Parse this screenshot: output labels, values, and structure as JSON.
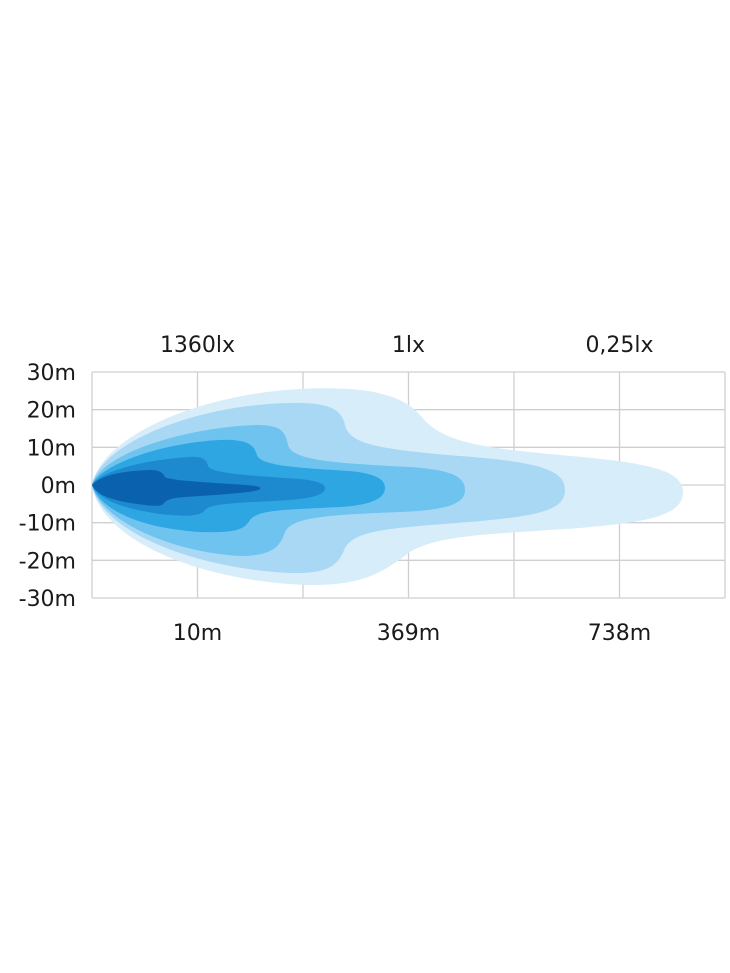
{
  "chart_data": {
    "type": "contour",
    "lux_labels": [
      "1360lx",
      "1lx",
      "0,25lx"
    ],
    "y_tick_labels": [
      "30m",
      "20m",
      "10m",
      "0m",
      "-10m",
      "-20m",
      "-30m"
    ],
    "y_ticks": [
      30,
      20,
      10,
      0,
      -10,
      -20,
      -30
    ],
    "x_tick_labels": [
      "10m",
      "369m",
      "738m"
    ],
    "ylim": [
      -30,
      30
    ],
    "grid": true,
    "grid_color": "#cfcfcf",
    "levels": [
      {
        "color": "#d7edfa"
      },
      {
        "color": "#a9d8f5"
      },
      {
        "color": "#6fc3ef"
      },
      {
        "color": "#2ea6e2"
      },
      {
        "color": "#1d8ad0"
      },
      {
        "color": "#0a62ae"
      }
    ]
  }
}
